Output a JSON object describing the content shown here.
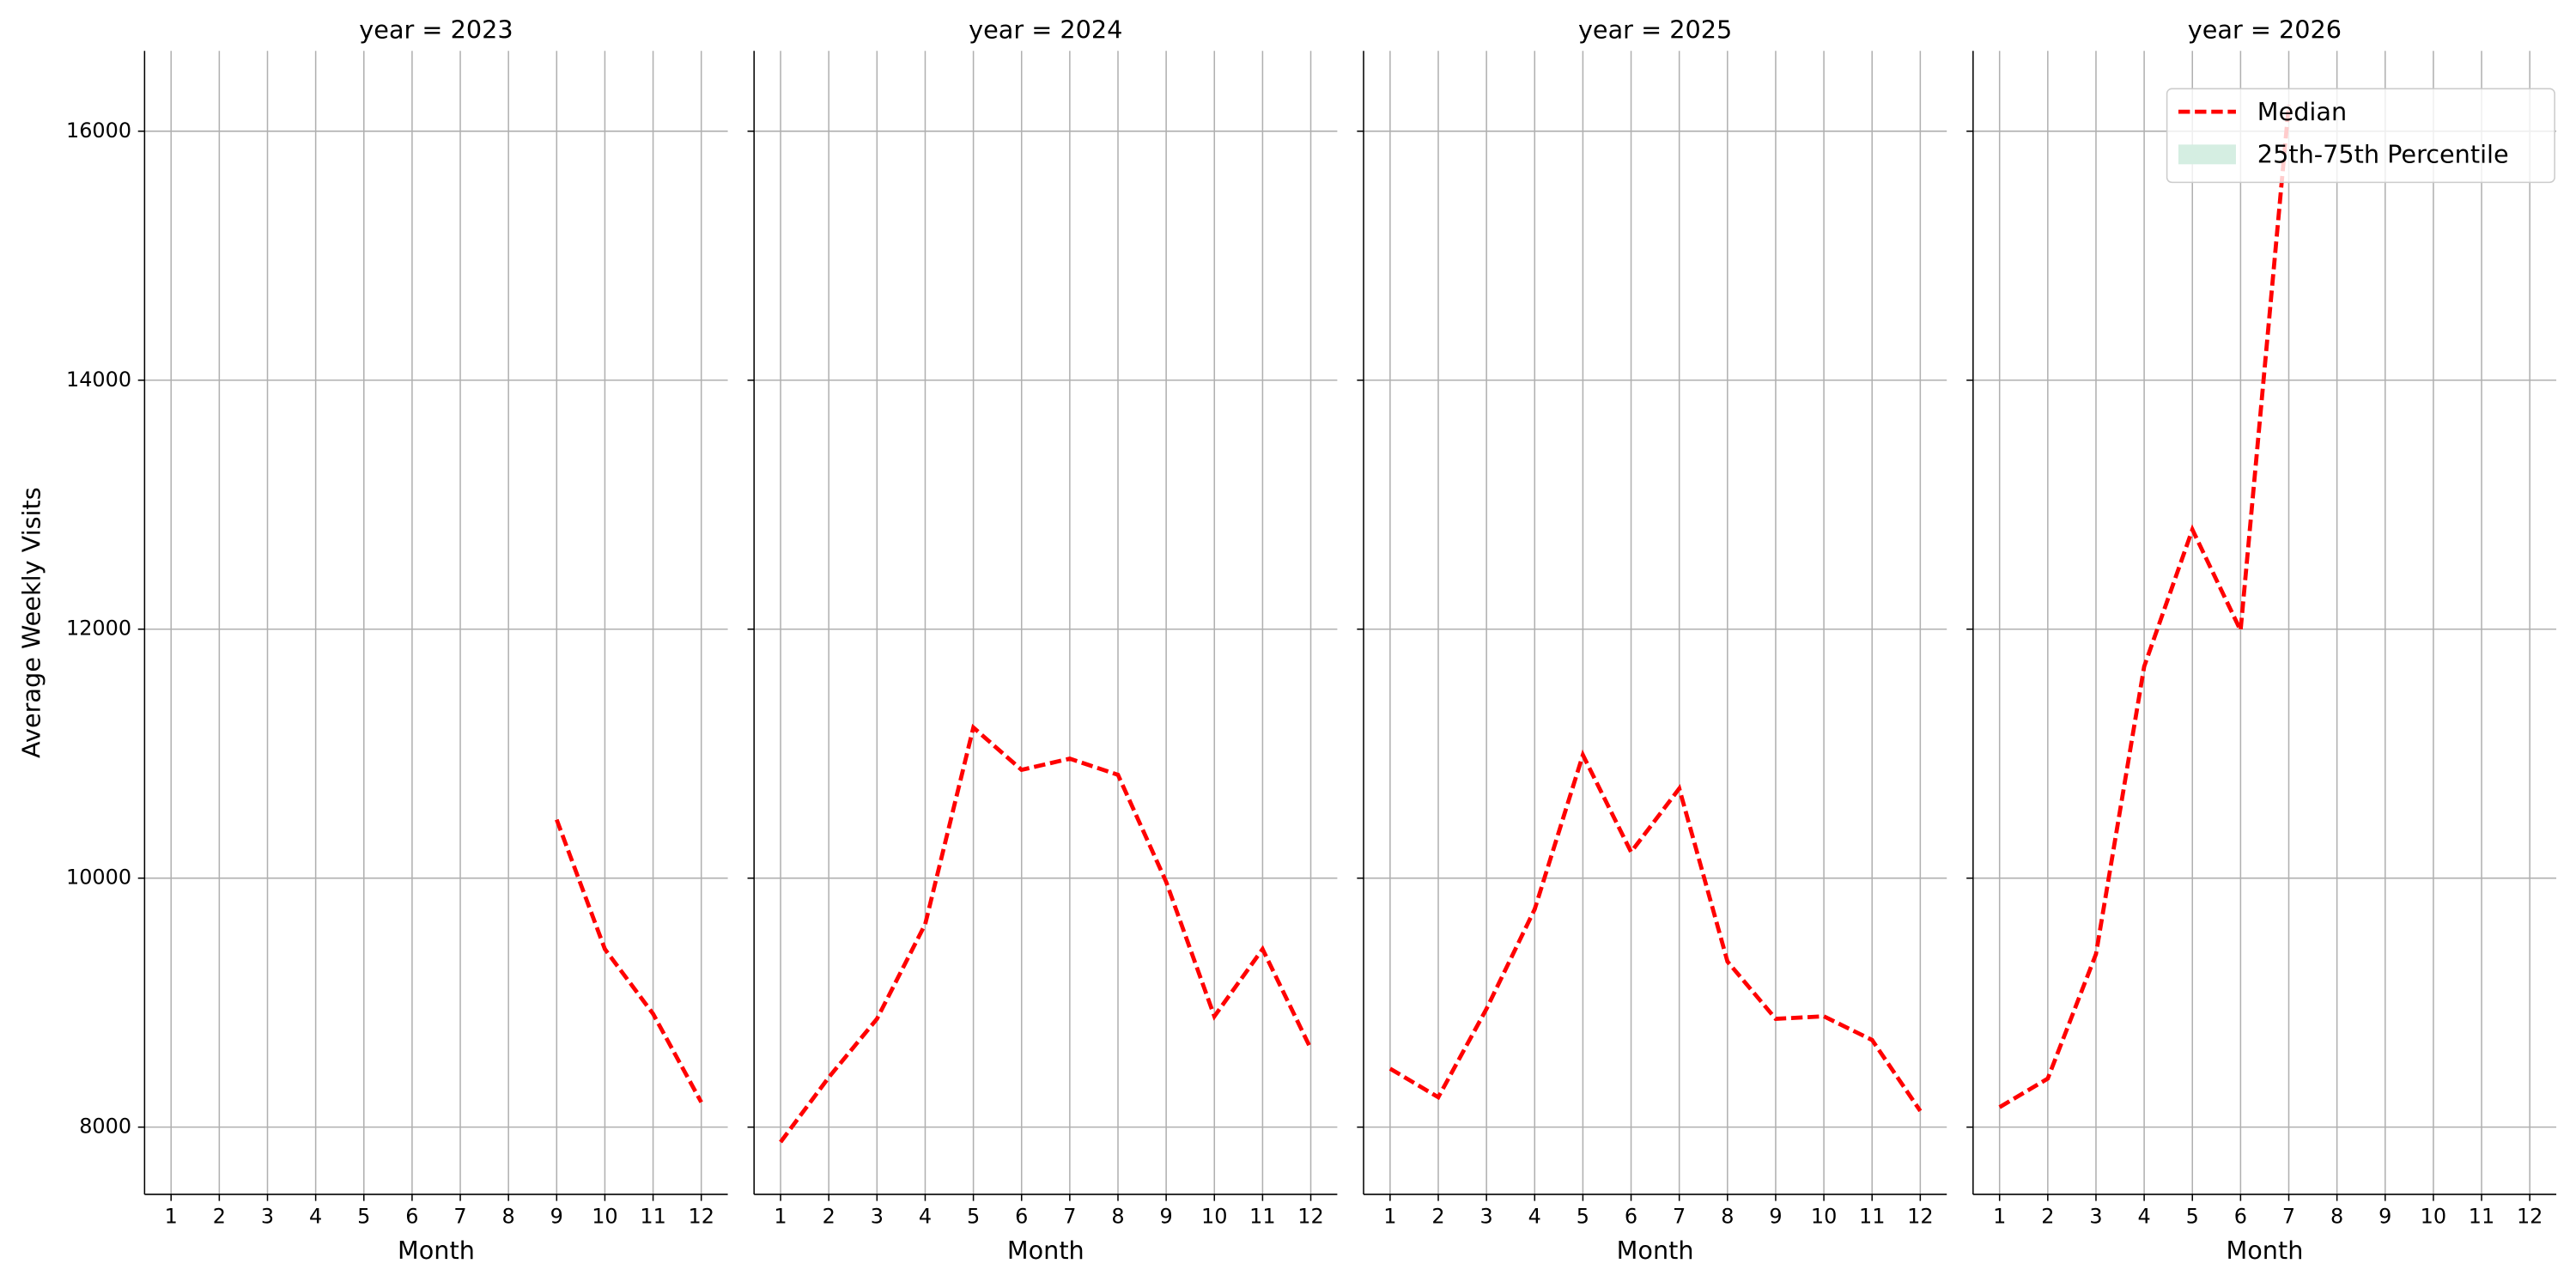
{
  "chart_data": [
    {
      "type": "line",
      "title": "year = 2023",
      "x_label": "Month",
      "y_label": "Average Weekly Visits",
      "x": [
        1,
        2,
        3,
        4,
        5,
        6,
        7,
        8,
        9,
        10,
        11,
        12
      ],
      "series": [
        {
          "name": "Median",
          "color": "#ff0000",
          "values": [
            null,
            null,
            null,
            null,
            null,
            null,
            null,
            null,
            10470,
            9430,
            8910,
            8200
          ]
        }
      ],
      "xlim": [
        0.45,
        12.55
      ],
      "xticks": [
        1,
        2,
        3,
        4,
        5,
        6,
        7,
        8,
        9,
        10,
        11,
        12
      ],
      "ylim": [
        7460,
        16645
      ],
      "yticks": [
        8000,
        10000,
        12000,
        14000,
        16000
      ],
      "grid": true
    },
    {
      "type": "line",
      "title": "year = 2024",
      "x_label": "Month",
      "x": [
        1,
        2,
        3,
        4,
        5,
        6,
        7,
        8,
        9,
        10,
        11,
        12
      ],
      "series": [
        {
          "name": "Median",
          "color": "#ff0000",
          "values": [
            7880,
            8400,
            8870,
            9630,
            11210,
            10870,
            10960,
            10830,
            9970,
            8890,
            9430,
            8630
          ]
        }
      ],
      "xlim": [
        0.45,
        12.55
      ],
      "xticks": [
        1,
        2,
        3,
        4,
        5,
        6,
        7,
        8,
        9,
        10,
        11,
        12
      ],
      "ylim": [
        7460,
        16645
      ],
      "yticks": [
        8000,
        10000,
        12000,
        14000,
        16000
      ],
      "grid": true
    },
    {
      "type": "line",
      "title": "year = 2025",
      "x_label": "Month",
      "x": [
        1,
        2,
        3,
        4,
        5,
        6,
        7,
        8,
        9,
        10,
        11,
        12
      ],
      "series": [
        {
          "name": "Median",
          "color": "#ff0000",
          "values": [
            8470,
            8240,
            8950,
            9750,
            10990,
            10210,
            10720,
            9330,
            8870,
            8890,
            8700,
            8130
          ]
        }
      ],
      "xlim": [
        0.45,
        12.55
      ],
      "xticks": [
        1,
        2,
        3,
        4,
        5,
        6,
        7,
        8,
        9,
        10,
        11,
        12
      ],
      "ylim": [
        7460,
        16645
      ],
      "yticks": [
        8000,
        10000,
        12000,
        14000,
        16000
      ],
      "grid": true
    },
    {
      "type": "line",
      "title": "year = 2026",
      "x_label": "Month",
      "x": [
        1,
        2,
        3,
        4,
        5,
        6,
        7,
        8,
        9,
        10,
        11,
        12
      ],
      "series": [
        {
          "name": "Median",
          "color": "#ff0000",
          "values": [
            8160,
            8390,
            9390,
            11700,
            12800,
            11990,
            16210,
            null,
            null,
            null,
            null,
            null
          ]
        }
      ],
      "band": {
        "name": "25th-75th Percentile",
        "color": "#d5eee2"
      },
      "legend": "upper right",
      "xlim": [
        0.45,
        12.55
      ],
      "xticks": [
        1,
        2,
        3,
        4,
        5,
        6,
        7,
        8,
        9,
        10,
        11,
        12
      ],
      "ylim": [
        7460,
        16645
      ],
      "yticks": [
        8000,
        10000,
        12000,
        14000,
        16000
      ],
      "grid": true
    }
  ]
}
